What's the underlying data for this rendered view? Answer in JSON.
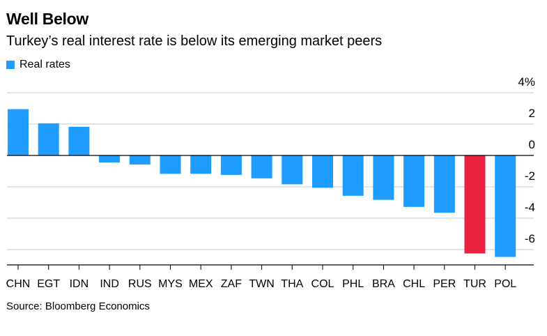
{
  "chart_data": {
    "type": "bar",
    "title": "Well Below",
    "subtitle": "Turkey’s real interest rate is below its emerging market peers",
    "legend": [
      {
        "label": "Real rates",
        "color": "#1e9cff"
      }
    ],
    "categories": [
      "CHN",
      "EGT",
      "IDN",
      "IND",
      "RUS",
      "MYS",
      "MEX",
      "ZAF",
      "TWN",
      "THA",
      "COL",
      "PHL",
      "BRA",
      "CHL",
      "PER",
      "TUR",
      "POL"
    ],
    "values": [
      2.95,
      2.05,
      1.83,
      -0.45,
      -0.58,
      -1.17,
      -1.17,
      -1.24,
      -1.46,
      -1.84,
      -2.06,
      -2.57,
      -2.83,
      -3.28,
      -3.65,
      -6.25,
      -6.47
    ],
    "highlight": {
      "category": "TUR",
      "color": "#eb2340"
    },
    "bar_color": "#1e9cff",
    "yticks": [
      4,
      2,
      0,
      -2,
      -4,
      -6
    ],
    "ytick_labels": [
      "4%",
      "2",
      "0",
      "-2",
      "-4",
      "-6"
    ],
    "ylim": [
      -7,
      4
    ],
    "xlabel": "",
    "ylabel": "",
    "grid": true,
    "source": "Source: Bloomberg Economics"
  }
}
